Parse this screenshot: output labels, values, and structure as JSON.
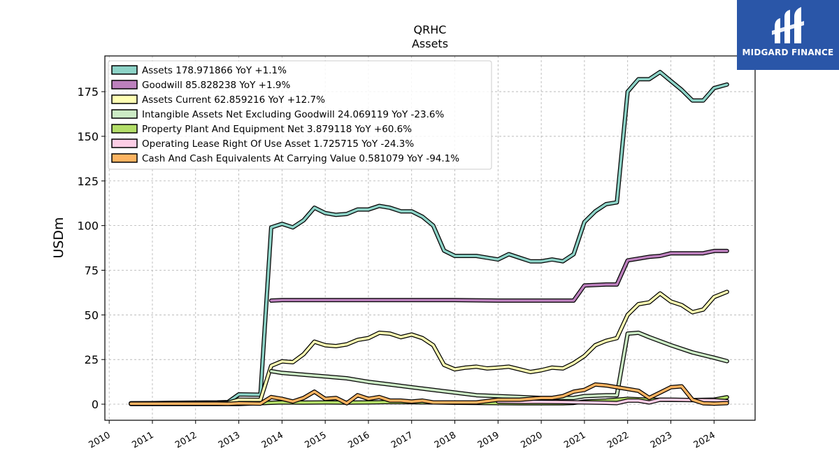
{
  "chart_data": {
    "type": "line",
    "title": "QRHC",
    "subtitle": "Assets",
    "ylabel": "USDm",
    "xlabel": "",
    "xlim": [
      2009.9,
      2024.95
    ],
    "ylim": [
      -9,
      195
    ],
    "yticks": [
      0,
      25,
      50,
      75,
      100,
      125,
      150,
      175
    ],
    "xticks": [
      2010,
      2011,
      2012,
      2013,
      2014,
      2015,
      2016,
      2017,
      2018,
      2019,
      2020,
      2021,
      2022,
      2023,
      2024
    ],
    "grid": true,
    "legend_position": "top-left",
    "series": [
      {
        "name": "Assets",
        "legend": "Assets  178.971866 YoY +1.1%",
        "color": "#8dd3c7",
        "x": [
          2010.5,
          2011.0,
          2011.5,
          2012.0,
          2012.5,
          2012.75,
          2013.0,
          2013.5,
          2013.75,
          2014.0,
          2014.25,
          2014.5,
          2014.75,
          2015.0,
          2015.25,
          2015.5,
          2015.75,
          2016.0,
          2016.25,
          2016.5,
          2016.75,
          2017.0,
          2017.25,
          2017.5,
          2017.75,
          2018.0,
          2018.25,
          2018.5,
          2018.75,
          2019.0,
          2019.25,
          2019.5,
          2019.75,
          2020.0,
          2020.25,
          2020.5,
          2020.75,
          2021.0,
          2021.25,
          2021.5,
          2021.75,
          2022.0,
          2022.25,
          2022.5,
          2022.75,
          2023.0,
          2023.25,
          2023.5,
          2023.75,
          2024.0,
          2024.3
        ],
        "values": [
          0.5,
          0.6,
          0.8,
          0.9,
          1.0,
          1.2,
          5.5,
          5.3,
          99.0,
          101.0,
          99.0,
          103.0,
          110.0,
          107.0,
          106.0,
          106.5,
          109.0,
          109.0,
          111.0,
          110.0,
          108.0,
          108.0,
          105.0,
          100.0,
          86.0,
          83.0,
          83.0,
          83.0,
          82.0,
          81.0,
          84.0,
          82.0,
          80.0,
          80.0,
          81.0,
          80.0,
          84.0,
          102.0,
          108.0,
          112.0,
          113.0,
          175.0,
          182.0,
          182.0,
          186.0,
          181.0,
          176.0,
          170.0,
          170.0,
          177.0,
          179.0
        ]
      },
      {
        "name": "Goodwill",
        "legend": "Goodwill  85.828238 YoY +1.9%",
        "color": "#bc80bd",
        "x": [
          2013.75,
          2014.0,
          2015.0,
          2016.0,
          2017.0,
          2018.0,
          2019.0,
          2020.0,
          2020.75,
          2021.0,
          2021.5,
          2021.75,
          2022.0,
          2022.5,
          2022.75,
          2023.0,
          2023.5,
          2023.75,
          2024.0,
          2024.3
        ],
        "values": [
          58.0,
          58.3,
          58.3,
          58.3,
          58.3,
          58.3,
          58.0,
          58.0,
          58.0,
          66.5,
          67.0,
          67.0,
          80.5,
          82.5,
          83.0,
          84.5,
          84.5,
          84.5,
          85.8,
          85.8
        ]
      },
      {
        "name": "Assets Current",
        "legend": "Assets Current  62.859216 YoY +12.7%",
        "color": "#ffffb3",
        "x": [
          2010.5,
          2011.0,
          2012.0,
          2012.75,
          2013.0,
          2013.5,
          2013.75,
          2014.0,
          2014.25,
          2014.5,
          2014.75,
          2015.0,
          2015.25,
          2015.5,
          2015.75,
          2016.0,
          2016.25,
          2016.5,
          2016.75,
          2017.0,
          2017.25,
          2017.5,
          2017.75,
          2018.0,
          2018.25,
          2018.5,
          2018.75,
          2019.0,
          2019.25,
          2019.5,
          2019.75,
          2020.0,
          2020.25,
          2020.5,
          2020.75,
          2021.0,
          2021.25,
          2021.5,
          2021.75,
          2022.0,
          2022.25,
          2022.5,
          2022.75,
          2023.0,
          2023.25,
          2023.5,
          2023.75,
          2024.0,
          2024.3
        ],
        "values": [
          0.5,
          0.5,
          0.7,
          0.8,
          2.5,
          2.4,
          21.5,
          24.0,
          23.5,
          28.0,
          35.0,
          33.0,
          32.5,
          33.5,
          36.0,
          37.0,
          40.0,
          39.5,
          37.5,
          39.0,
          37.0,
          33.0,
          22.0,
          19.5,
          20.5,
          21.0,
          20.0,
          20.5,
          21.0,
          19.5,
          18.0,
          19.0,
          20.5,
          20.0,
          23.0,
          27.0,
          33.0,
          35.5,
          37.0,
          50.0,
          56.0,
          57.0,
          62.0,
          57.5,
          55.5,
          51.5,
          53.0,
          60.0,
          62.9
        ]
      },
      {
        "name": "Intangible Assets Net Excluding Goodwill",
        "legend": "Intangible Assets Net Excluding Goodwill  24.069119 YoY -23.6%",
        "color": "#ccebc5",
        "x": [
          2013.75,
          2014.0,
          2014.5,
          2015.0,
          2015.5,
          2016.0,
          2016.5,
          2017.0,
          2017.5,
          2018.0,
          2018.5,
          2019.0,
          2019.5,
          2020.0,
          2020.5,
          2020.75,
          2021.0,
          2021.5,
          2021.75,
          2022.0,
          2022.25,
          2022.5,
          2023.0,
          2023.5,
          2024.0,
          2024.3
        ],
        "values": [
          18.5,
          17.5,
          16.5,
          15.5,
          14.5,
          12.5,
          11.0,
          9.5,
          8.0,
          6.5,
          5.0,
          4.5,
          4.0,
          3.5,
          3.5,
          3.5,
          4.5,
          5.0,
          5.0,
          39.5,
          40.0,
          37.5,
          33.0,
          29.0,
          26.0,
          24.1
        ]
      },
      {
        "name": "Property Plant And Equipment Net",
        "legend": "Property Plant And Equipment Net  3.879118 YoY +60.6%",
        "color": "#b3de69",
        "x": [
          2010.5,
          2011.0,
          2012.0,
          2013.0,
          2013.75,
          2014.0,
          2014.5,
          2015.0,
          2015.5,
          2016.0,
          2016.5,
          2017.0,
          2017.5,
          2018.0,
          2018.5,
          2019.0,
          2019.5,
          2020.0,
          2020.5,
          2020.75,
          2021.0,
          2021.5,
          2022.0,
          2022.5,
          2023.0,
          2023.5,
          2024.0,
          2024.3
        ],
        "values": [
          0.1,
          0.1,
          0.1,
          0.1,
          0.8,
          1.0,
          0.9,
          1.0,
          0.9,
          1.0,
          1.2,
          1.1,
          1.0,
          0.8,
          0.7,
          0.6,
          0.5,
          0.5,
          0.5,
          0.7,
          1.5,
          2.0,
          3.0,
          2.5,
          2.4,
          2.3,
          2.5,
          3.9
        ]
      },
      {
        "name": "Operating Lease Right Of Use Asset",
        "legend": "Operating Lease Right Of Use Asset  1.725715 YoY -24.3%",
        "color": "#fccde5",
        "x": [
          2019.0,
          2019.5,
          2020.0,
          2020.5,
          2021.0,
          2021.5,
          2021.75,
          2022.0,
          2022.25,
          2022.5,
          2022.75,
          2023.0,
          2023.5,
          2024.0,
          2024.3
        ],
        "values": [
          1.5,
          1.3,
          1.3,
          1.2,
          1.0,
          0.8,
          0.6,
          2.0,
          2.0,
          1.0,
          2.5,
          2.5,
          2.3,
          2.2,
          1.7
        ]
      },
      {
        "name": "Cash And Cash Equivalents At Carrying Value",
        "legend": "Cash And Cash Equivalents At Carrying Value  0.581079 YoY -94.1%",
        "color": "#fdb462",
        "x": [
          2010.5,
          2011.0,
          2011.5,
          2012.0,
          2012.5,
          2012.75,
          2013.0,
          2013.5,
          2013.75,
          2014.0,
          2014.25,
          2014.5,
          2014.75,
          2015.0,
          2015.25,
          2015.5,
          2015.75,
          2016.0,
          2016.25,
          2016.5,
          2016.75,
          2017.0,
          2017.25,
          2017.5,
          2017.75,
          2018.0,
          2018.5,
          2019.0,
          2019.5,
          2020.0,
          2020.25,
          2020.5,
          2020.75,
          2021.0,
          2021.25,
          2021.5,
          2021.75,
          2022.0,
          2022.25,
          2022.5,
          2022.75,
          2023.0,
          2023.25,
          2023.5,
          2023.75,
          2024.0,
          2024.3
        ],
        "values": [
          0.3,
          0.3,
          0.3,
          0.3,
          0.3,
          0.2,
          0.5,
          0.3,
          4.0,
          3.0,
          1.5,
          3.5,
          7.0,
          3.0,
          3.5,
          0.5,
          5.0,
          3.0,
          4.0,
          2.0,
          2.0,
          1.5,
          2.0,
          1.0,
          1.0,
          1.0,
          1.0,
          2.5,
          2.5,
          3.5,
          3.5,
          4.5,
          7.0,
          8.0,
          11.0,
          10.5,
          9.5,
          8.5,
          7.5,
          3.5,
          6.5,
          9.5,
          10.0,
          2.5,
          0.5,
          0.3,
          0.6
        ]
      }
    ]
  },
  "logo": {
    "text": "MIDGARD FINANCE",
    "color": "#2a56a8"
  }
}
